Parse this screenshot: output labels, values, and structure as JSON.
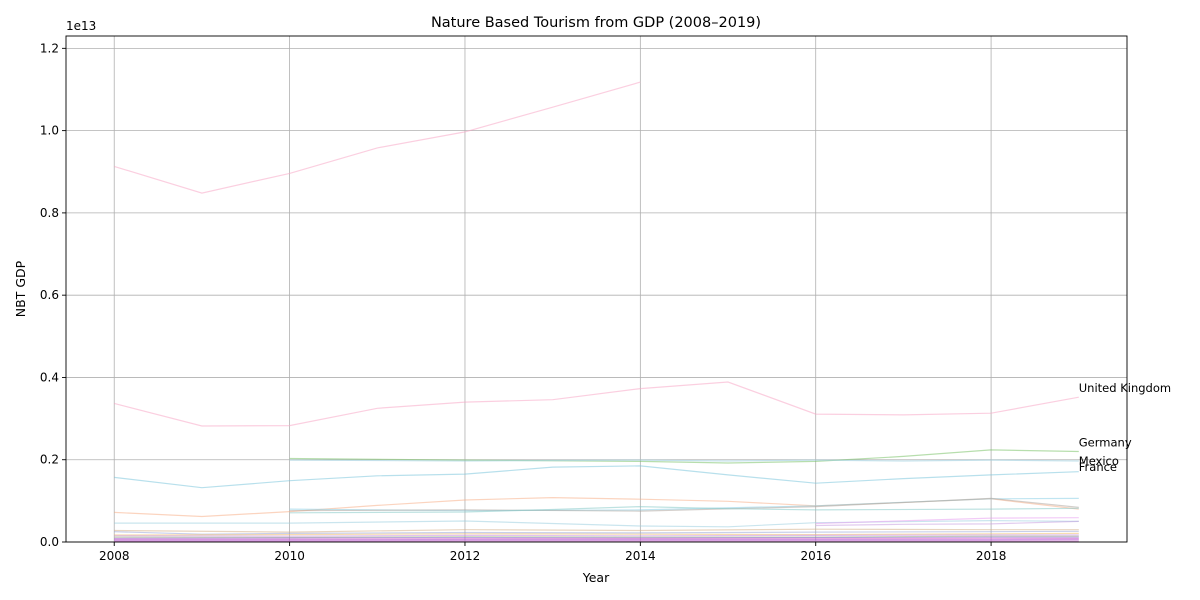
{
  "chart_data": {
    "type": "line",
    "title": "Nature Based Tourism from GDP (2008–2019)",
    "xlabel": "Year",
    "ylabel": "NBT GDP",
    "offset_label": "1e13",
    "xlim": [
      2007.45,
      2019.55
    ],
    "ylim": [
      0,
      12300000000000.0
    ],
    "xticks": [
      2008,
      2010,
      2012,
      2014,
      2016,
      2018
    ],
    "yticks": [
      0,
      2000000000000.0,
      4000000000000.0,
      6000000000000.0,
      8000000000000.0,
      10000000000000.0,
      12000000000000.0
    ],
    "ytick_labels": [
      "0.0",
      "0.2",
      "0.4",
      "0.6",
      "0.8",
      "1.0",
      "1.2"
    ],
    "grid": true,
    "series": [
      {
        "color": "#f7a8c6",
        "x": [
          2008,
          2009,
          2010,
          2011,
          2012,
          2013,
          2014
        ],
        "values": [
          9130000000000.0,
          8480000000000.0,
          8960000000000.0,
          9580000000000.0,
          9970000000000.0,
          10570000000000.0,
          11180000000000.0
        ]
      },
      {
        "name": "United Kingdom",
        "color": "#f7a8c6",
        "x": [
          2008,
          2009,
          2010,
          2011,
          2012,
          2013,
          2014,
          2015,
          2016,
          2017,
          2018,
          2019
        ],
        "values": [
          3370000000000.0,
          2820000000000.0,
          2830000000000.0,
          3250000000000.0,
          3400000000000.0,
          3460000000000.0,
          3730000000000.0,
          3890000000000.0,
          3110000000000.0,
          3090000000000.0,
          3130000000000.0,
          3520000000000.0
        ]
      },
      {
        "name": "Germany",
        "color": "#7cc26a",
        "x": [
          2010,
          2012,
          2014,
          2015,
          2016,
          2017,
          2018,
          2019
        ],
        "values": [
          2030000000000.0,
          1990000000000.0,
          1960000000000.0,
          1920000000000.0,
          1960000000000.0,
          2080000000000.0,
          2240000000000.0,
          2200000000000.0
        ]
      },
      {
        "name": "Mexico",
        "color": "#9ccfe0",
        "x": [
          2010,
          2012,
          2014,
          2015,
          2016,
          2017,
          2018,
          2019
        ],
        "values": [
          1990000000000.0,
          1970000000000.0,
          1990000000000.0,
          1970000000000.0,
          1990000000000.0,
          1970000000000.0,
          1990000000000.0,
          1970000000000.0
        ]
      },
      {
        "name": "France",
        "color": "#7ec6dc",
        "x": [
          2008,
          2009,
          2010,
          2011,
          2012,
          2013,
          2014,
          2015,
          2016,
          2017,
          2018,
          2019
        ],
        "values": [
          1570000000000.0,
          1320000000000.0,
          1490000000000.0,
          1610000000000.0,
          1650000000000.0,
          1820000000000.0,
          1850000000000.0,
          1630000000000.0,
          1430000000000.0,
          1540000000000.0,
          1630000000000.0,
          1710000000000.0
        ]
      },
      {
        "color": "#f7b08a",
        "x": [
          2008,
          2009,
          2010,
          2011,
          2012,
          2013,
          2014,
          2015,
          2016,
          2017,
          2018,
          2019
        ],
        "values": [
          720000000000.0,
          620000000000.0,
          740000000000.0,
          890000000000.0,
          1020000000000.0,
          1080000000000.0,
          1040000000000.0,
          990000000000.0,
          880000000000.0,
          960000000000.0,
          1050000000000.0,
          800000000000.0
        ]
      },
      {
        "color": "#8cd0e6",
        "x": [
          2010,
          2012,
          2014,
          2016,
          2018,
          2019
        ],
        "values": [
          800000000000.0,
          760000000000.0,
          780000000000.0,
          880000000000.0,
          1050000000000.0,
          1060000000000.0
        ]
      },
      {
        "color": "#b0a8a0",
        "x": [
          2010,
          2012,
          2014,
          2016,
          2018,
          2019
        ],
        "values": [
          760000000000.0,
          780000000000.0,
          750000000000.0,
          860000000000.0,
          1060000000000.0,
          840000000000.0
        ]
      },
      {
        "color": "#88cbc8",
        "x": [
          2010,
          2012,
          2013,
          2014,
          2015,
          2016,
          2018,
          2019
        ],
        "values": [
          710000000000.0,
          730000000000.0,
          790000000000.0,
          860000000000.0,
          810000000000.0,
          780000000000.0,
          800000000000.0,
          820000000000.0
        ]
      },
      {
        "color": "#9ecfe0",
        "x": [
          2008,
          2010,
          2012,
          2014,
          2015,
          2016,
          2018,
          2019
        ],
        "values": [
          460000000000.0,
          460000000000.0,
          510000000000.0,
          390000000000.0,
          370000000000.0,
          470000000000.0,
          520000000000.0,
          500000000000.0
        ]
      },
      {
        "color": "#e8a0f0",
        "x": [
          2016,
          2018,
          2019
        ],
        "values": [
          450000000000.0,
          580000000000.0,
          590000000000.0
        ]
      },
      {
        "color": "#c8a0e0",
        "x": [
          2016,
          2017,
          2018,
          2019
        ],
        "values": [
          400000000000.0,
          430000000000.0,
          440000000000.0,
          500000000000.0
        ]
      },
      {
        "color": "#d6b08a",
        "x": [
          2008,
          2010,
          2012,
          2014,
          2016,
          2018,
          2019
        ],
        "values": [
          280000000000.0,
          240000000000.0,
          300000000000.0,
          280000000000.0,
          310000000000.0,
          300000000000.0,
          300000000000.0
        ]
      },
      {
        "color": "#9aa8d8",
        "x": [
          2008,
          2009,
          2010,
          2012,
          2014,
          2016,
          2018,
          2019
        ],
        "values": [
          250000000000.0,
          190000000000.0,
          210000000000.0,
          230000000000.0,
          220000000000.0,
          240000000000.0,
          250000000000.0,
          260000000000.0
        ]
      },
      {
        "color": "#f0c070",
        "x": [
          2008,
          2010,
          2012,
          2014,
          2016,
          2018,
          2019
        ],
        "values": [
          170000000000.0,
          180000000000.0,
          200000000000.0,
          190000000000.0,
          180000000000.0,
          200000000000.0,
          210000000000.0
        ]
      },
      {
        "color": "#c890e8",
        "x": [
          2008,
          2010,
          2012,
          2014,
          2016,
          2018,
          2019
        ],
        "values": [
          150000000000.0,
          140000000000.0,
          160000000000.0,
          150000000000.0,
          160000000000.0,
          170000000000.0,
          170000000000.0
        ]
      },
      {
        "color": "#a8c880",
        "x": [
          2008,
          2010,
          2012,
          2014,
          2016,
          2018,
          2019
        ],
        "values": [
          120000000000.0,
          110000000000.0,
          130000000000.0,
          120000000000.0,
          120000000000.0,
          140000000000.0,
          140000000000.0
        ]
      },
      {
        "color": "#9070d8",
        "x": [
          2008,
          2010,
          2012,
          2014,
          2016,
          2018,
          2019
        ],
        "values": [
          90000000000.0,
          100000000000.0,
          110000000000.0,
          100000000000.0,
          110000000000.0,
          120000000000.0,
          120000000000.0
        ]
      },
      {
        "color": "#e070c8",
        "x": [
          2008,
          2010,
          2012,
          2014,
          2016,
          2018,
          2019
        ],
        "values": [
          70000000000.0,
          70000000000.0,
          80000000000.0,
          80000000000.0,
          80000000000.0,
          90000000000.0,
          90000000000.0
        ]
      },
      {
        "color": "#b060d8",
        "x": [
          2008,
          2010,
          2012,
          2014,
          2016,
          2018,
          2019
        ],
        "values": [
          50000000000.0,
          50000000000.0,
          60000000000.0,
          60000000000.0,
          60000000000.0,
          60000000000.0,
          70000000000.0
        ]
      },
      {
        "color": "#d080e0",
        "x": [
          2008,
          2010,
          2012,
          2014,
          2016,
          2018,
          2019
        ],
        "values": [
          30000000000.0,
          30000000000.0,
          40000000000.0,
          40000000000.0,
          40000000000.0,
          40000000000.0,
          50000000000.0
        ]
      },
      {
        "color": "#c060c0",
        "x": [
          2008,
          2010,
          2012,
          2014,
          2016,
          2018,
          2019
        ],
        "values": [
          15000000000.0,
          15000000000.0,
          20000000000.0,
          20000000000.0,
          20000000000.0,
          20000000000.0,
          20000000000.0
        ]
      }
    ],
    "annotations": [
      {
        "text": "United Kingdom",
        "x": 2019,
        "y": 3650000000000.0
      },
      {
        "text": "Germany",
        "x": 2019,
        "y": 2320000000000.0
      },
      {
        "text": "Mexico",
        "x": 2019,
        "y": 1870000000000.0
      },
      {
        "text": "France",
        "x": 2019,
        "y": 1720000000000.0
      }
    ]
  }
}
